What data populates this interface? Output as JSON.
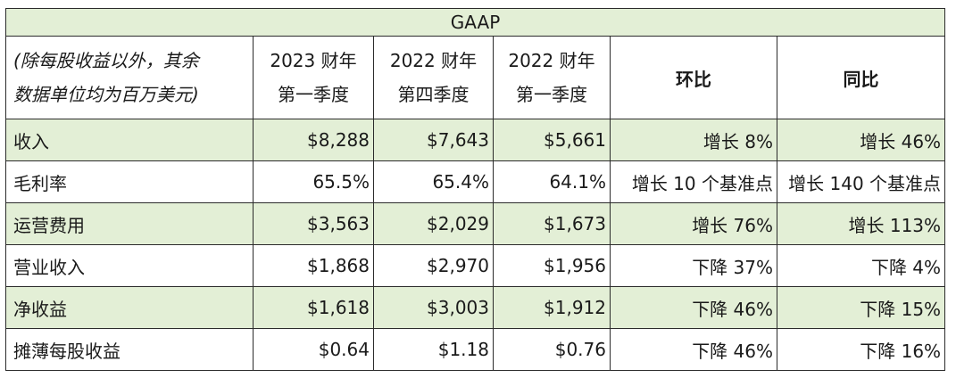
{
  "table": {
    "title": "GAAP",
    "header": {
      "rowhead_line1": "(除每股收益以外，其余",
      "rowhead_line2": "数据单位均为百万美元)",
      "col1_line1": "2023 财年",
      "col1_line2": "第一季度",
      "col2_line1": "2022 财年",
      "col2_line2": "第四季度",
      "col3_line1": "2022 财年",
      "col3_line2": "第一季度",
      "col4": "环比",
      "col5": "同比"
    },
    "rows": [
      {
        "label": "收入",
        "v1": "$8,288",
        "v2": "$7,643",
        "v3": "$5,661",
        "qoq": "增长 8%",
        "yoy": "增长 46%"
      },
      {
        "label": "毛利率",
        "v1": "65.5%",
        "v2": "65.4%",
        "v3": "64.1%",
        "qoq": "增长 10 个基准点",
        "yoy": "增长 140 个基准点"
      },
      {
        "label": "运营费用",
        "v1": "$3,563",
        "v2": "$2,029",
        "v3": "$1,673",
        "qoq": "增长 76%",
        "yoy": "增长 113%"
      },
      {
        "label": "营业收入",
        "v1": "$1,868",
        "v2": "$2,970",
        "v3": "$1,956",
        "qoq": "下降 37%",
        "yoy": "下降 4%"
      },
      {
        "label": "净收益",
        "v1": "$1,618",
        "v2": "$3,003",
        "v3": "$1,912",
        "qoq": "下降 46%",
        "yoy": "下降 15%"
      },
      {
        "label": "摊薄每股收益",
        "v1": "$0.64",
        "v2": "$1.18",
        "v3": "$0.76",
        "qoq": "下降 46%",
        "yoy": "下降 16%"
      }
    ]
  },
  "colors": {
    "band": "#e3efd6",
    "border": "#2b2b2b",
    "text": "#1a1a1a"
  }
}
